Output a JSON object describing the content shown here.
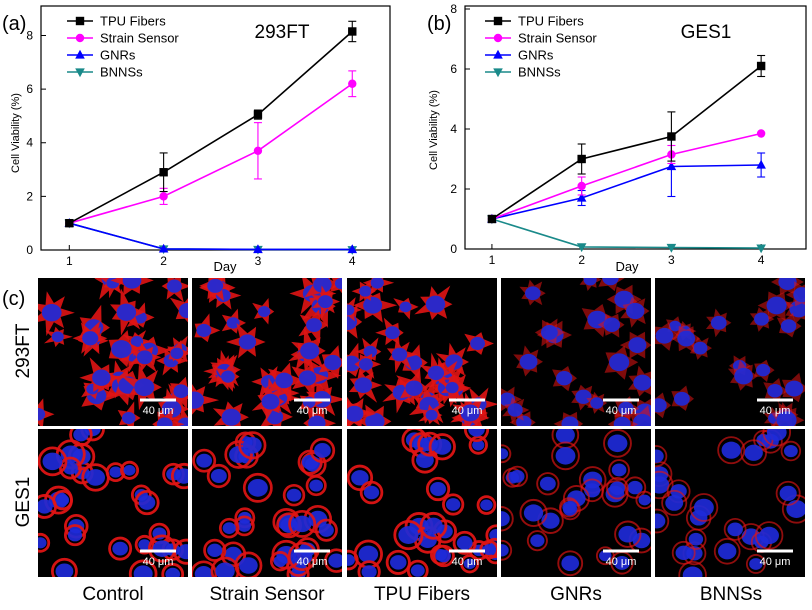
{
  "chart_data": [
    {
      "type": "line",
      "panel_label": "(a)",
      "title": "293FT",
      "xlabel": "Day",
      "ylabel": "Cell Viability (%)",
      "x": [
        1,
        2,
        3,
        4
      ],
      "xlim": [
        0.7,
        4.4
      ],
      "ylim": [
        0,
        9.1
      ],
      "xticks": [
        1,
        2,
        3,
        4
      ],
      "yticks": [
        0,
        2,
        4,
        6,
        8
      ],
      "legend_position": "top-left",
      "series": [
        {
          "name": "TPU Fibers",
          "color": "#000000",
          "marker": "square",
          "values": [
            1.0,
            2.9,
            5.05,
            8.15
          ],
          "errors": [
            0.1,
            0.72,
            0.17,
            0.38
          ]
        },
        {
          "name": "Strain Sensor",
          "color": "#ff00ff",
          "marker": "circle",
          "values": [
            1.0,
            2.0,
            3.7,
            6.2
          ],
          "errors": [
            0.1,
            0.3,
            1.05,
            0.48
          ]
        },
        {
          "name": "GNRs",
          "color": "#0000ff",
          "marker": "triangle-up",
          "values": [
            1.0,
            0.04,
            0.02,
            0.02
          ],
          "errors": [
            0.05,
            0.0,
            0.0,
            0.0
          ]
        },
        {
          "name": "BNNSs",
          "color": "#1a8a8a",
          "marker": "triangle-down",
          "values": [
            1.0,
            0.04,
            0.02,
            0.01
          ],
          "errors": [
            0.05,
            0.0,
            0.0,
            0.0
          ]
        }
      ]
    },
    {
      "type": "line",
      "panel_label": "(b)",
      "title": "GES1",
      "xlabel": "Day",
      "ylabel": "Cell Viability (%)",
      "x": [
        1,
        2,
        3,
        4
      ],
      "xlim": [
        0.7,
        4.5
      ],
      "ylim": [
        0,
        8.1
      ],
      "xticks": [
        1,
        2,
        3,
        4
      ],
      "yticks": [
        0,
        2,
        4,
        6,
        8
      ],
      "legend_position": "top-left",
      "series": [
        {
          "name": "TPU Fibers",
          "color": "#000000",
          "marker": "square",
          "values": [
            1.0,
            3.0,
            3.75,
            6.1
          ],
          "errors": [
            0.1,
            0.5,
            0.82,
            0.35
          ]
        },
        {
          "name": "Strain Sensor",
          "color": "#ff00ff",
          "marker": "circle",
          "values": [
            1.0,
            2.1,
            3.15,
            3.85
          ],
          "errors": [
            0.1,
            0.3,
            0.3,
            0.0
          ]
        },
        {
          "name": "GNRs",
          "color": "#0000ff",
          "marker": "triangle-up",
          "values": [
            1.0,
            1.7,
            2.75,
            2.8
          ],
          "errors": [
            0.1,
            0.25,
            1.0,
            0.4
          ]
        },
        {
          "name": "BNNSs",
          "color": "#1a8a8a",
          "marker": "triangle-down",
          "values": [
            1.0,
            0.07,
            0.05,
            0.03
          ],
          "errors": [
            0.1,
            0.0,
            0.0,
            0.0
          ]
        }
      ]
    }
  ],
  "panel_c": {
    "label": "(c)",
    "row_labels": [
      "293FT",
      "GES1"
    ],
    "column_labels": [
      "Control",
      "Strain Sensor",
      "TPU Fibers",
      "GNRs",
      "BNNSs"
    ],
    "scale_bar_text": "40 μm",
    "colors": {
      "membrane": "#e01414",
      "nucleus": "#1e2ad8",
      "background": "#000000"
    }
  }
}
